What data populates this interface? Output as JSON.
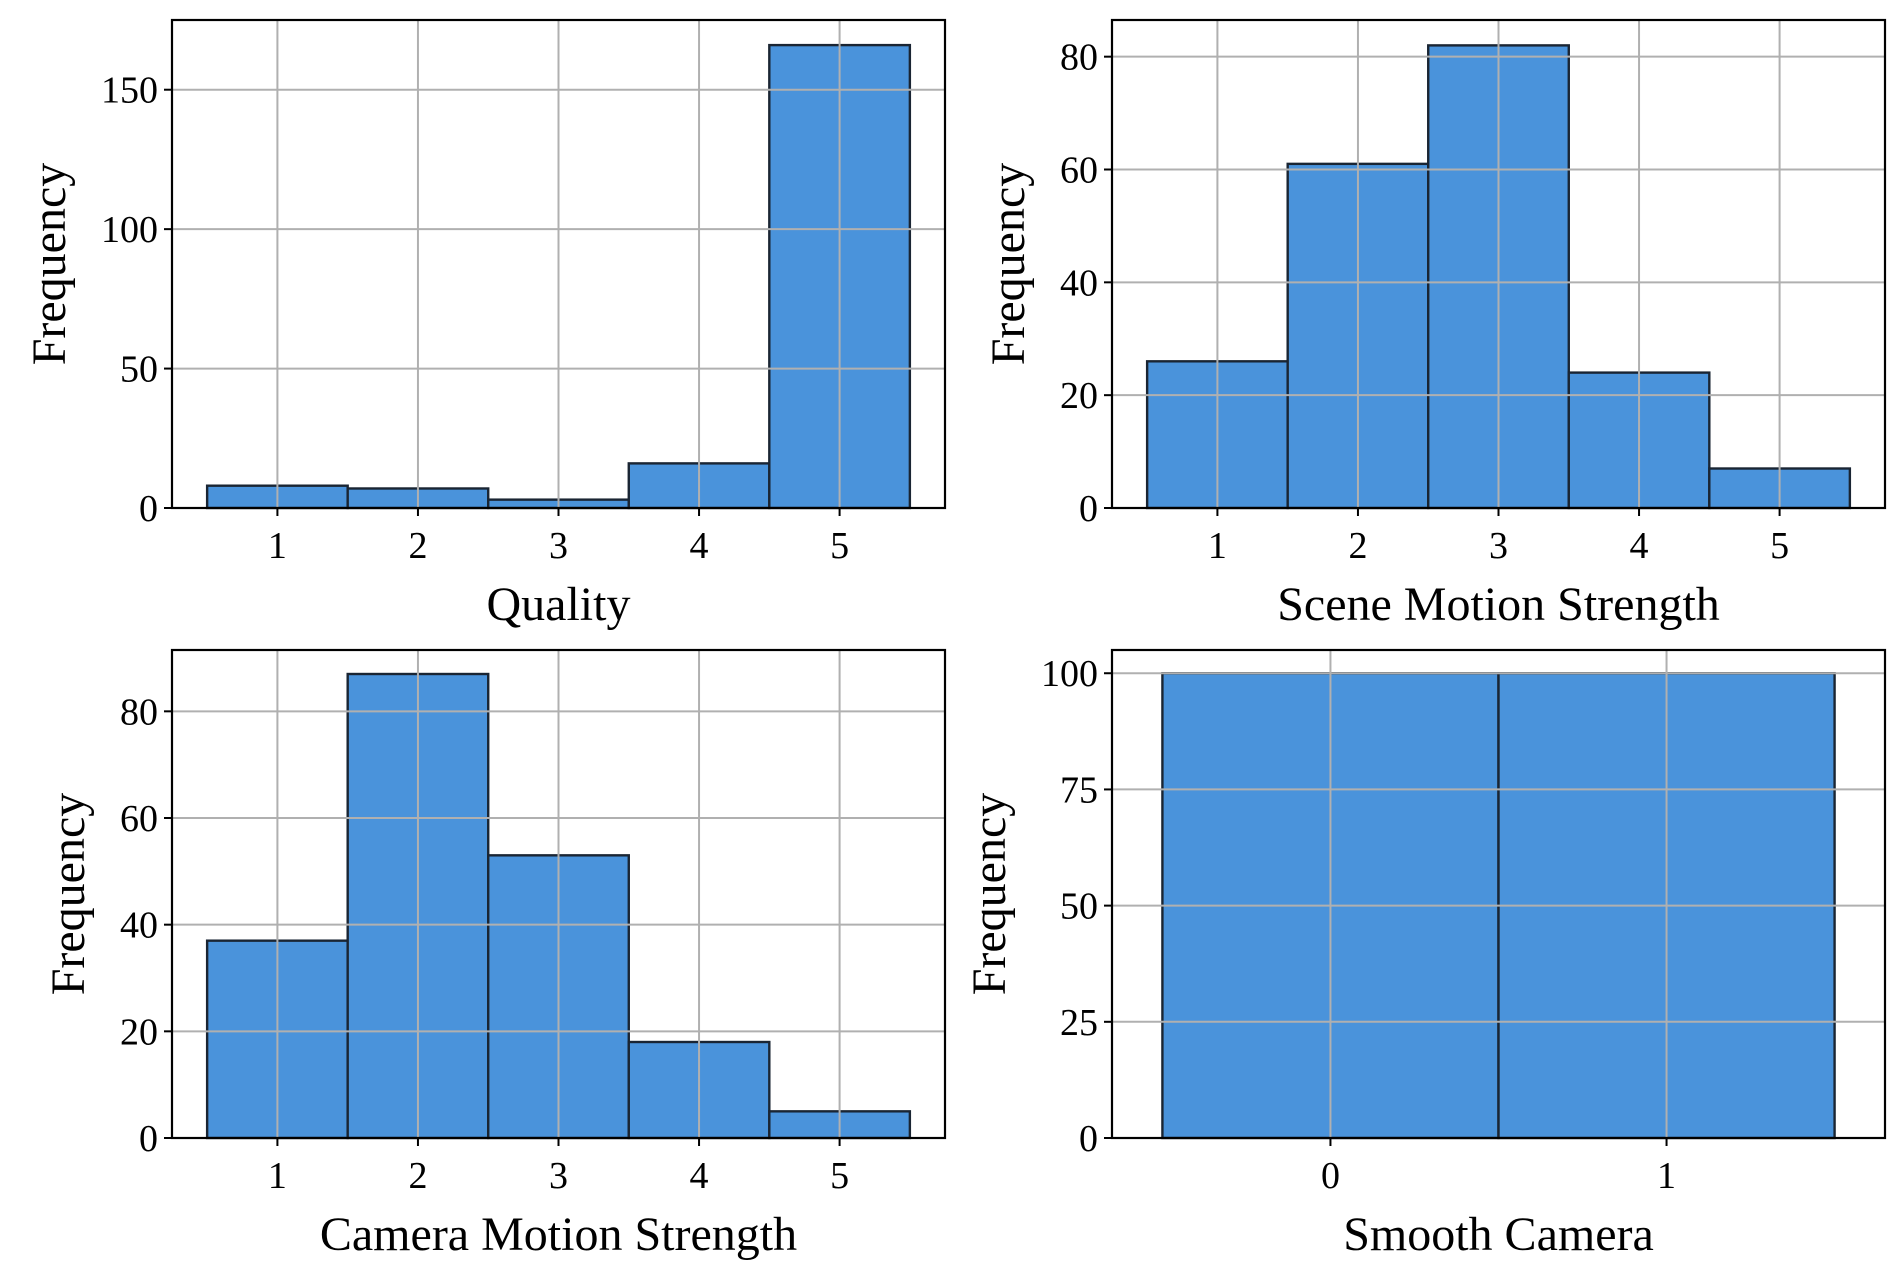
{
  "figure": {
    "colors": {
      "bar_fill": "#4a93db",
      "bar_edge": "#1a2533",
      "grid": "#b0b0b0",
      "axis": "#000000"
    }
  },
  "chart_data": [
    {
      "type": "bar",
      "position": "top-left",
      "title": "",
      "xlabel": "Quality",
      "ylabel": "Frequency",
      "categories": [
        "1",
        "2",
        "3",
        "4",
        "5"
      ],
      "x": [
        1,
        2,
        3,
        4,
        5
      ],
      "values": [
        8,
        7,
        3,
        16,
        166
      ],
      "xlim": [
        0.25,
        5.75
      ],
      "ylim": [
        0,
        175
      ],
      "yticks": [
        0,
        50,
        100,
        150
      ],
      "grid": true
    },
    {
      "type": "bar",
      "position": "top-right",
      "title": "",
      "xlabel": "Scene Motion Strength",
      "ylabel": "Frequency",
      "categories": [
        "1",
        "2",
        "3",
        "4",
        "5"
      ],
      "x": [
        1,
        2,
        3,
        4,
        5
      ],
      "values": [
        26,
        61,
        82,
        24,
        7
      ],
      "xlim": [
        0.25,
        5.75
      ],
      "ylim": [
        0,
        86.5
      ],
      "yticks": [
        0,
        20,
        40,
        60,
        80
      ],
      "grid": true
    },
    {
      "type": "bar",
      "position": "bottom-left",
      "title": "",
      "xlabel": "Camera Motion Strength",
      "ylabel": "Frequency",
      "categories": [
        "1",
        "2",
        "3",
        "4",
        "5"
      ],
      "x": [
        1,
        2,
        3,
        4,
        5
      ],
      "values": [
        37,
        87,
        53,
        18,
        5
      ],
      "xlim": [
        0.25,
        5.75
      ],
      "ylim": [
        0,
        91.5
      ],
      "yticks": [
        0,
        20,
        40,
        60,
        80
      ],
      "grid": true
    },
    {
      "type": "bar",
      "position": "bottom-right",
      "title": "",
      "xlabel": "Smooth Camera",
      "ylabel": "Frequency",
      "categories": [
        "0",
        "1"
      ],
      "x": [
        0,
        1
      ],
      "bar_edges": [
        [
          -0.5,
          0.5
        ],
        [
          0.5,
          1.5
        ]
      ],
      "values": [
        100,
        100
      ],
      "xlim": [
        -0.65,
        1.65
      ],
      "ylim": [
        0,
        105
      ],
      "yticks": [
        0,
        25,
        50,
        75,
        100
      ],
      "grid": true
    }
  ]
}
